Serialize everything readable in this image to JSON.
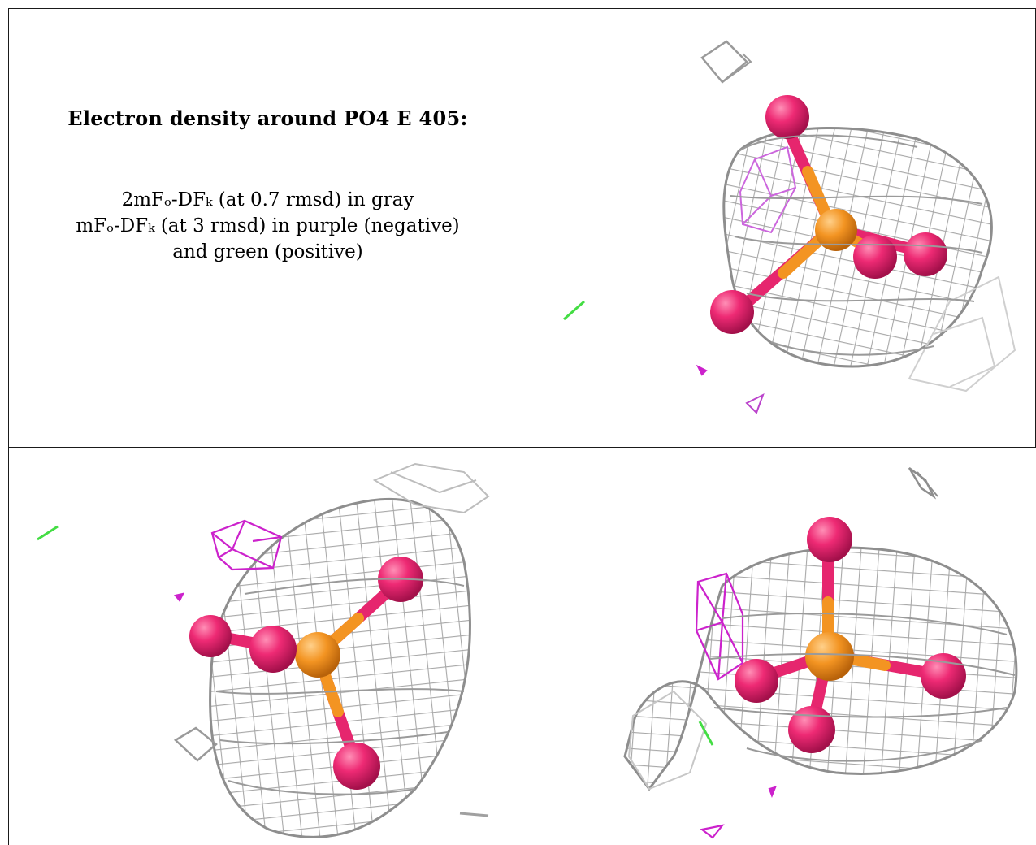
{
  "caption": {
    "title": "Electron density around PO4 E 405:",
    "line1": "2mFₒ-DFₖ (at 0.7 rmsd) in gray",
    "line2": "mFₒ-DFₖ (at 3 rmsd) in purple (negative)",
    "line3": "and green (positive)"
  },
  "legend_colors": {
    "map_2fofc": "#b8b8b8",
    "difference_negative": "#cc22cc",
    "difference_positive": "#44dd44",
    "oxygen": "#e6266e",
    "phosphorus": "#f0961e"
  },
  "views": [
    "view-top-right",
    "view-bottom-left",
    "view-bottom-right"
  ]
}
